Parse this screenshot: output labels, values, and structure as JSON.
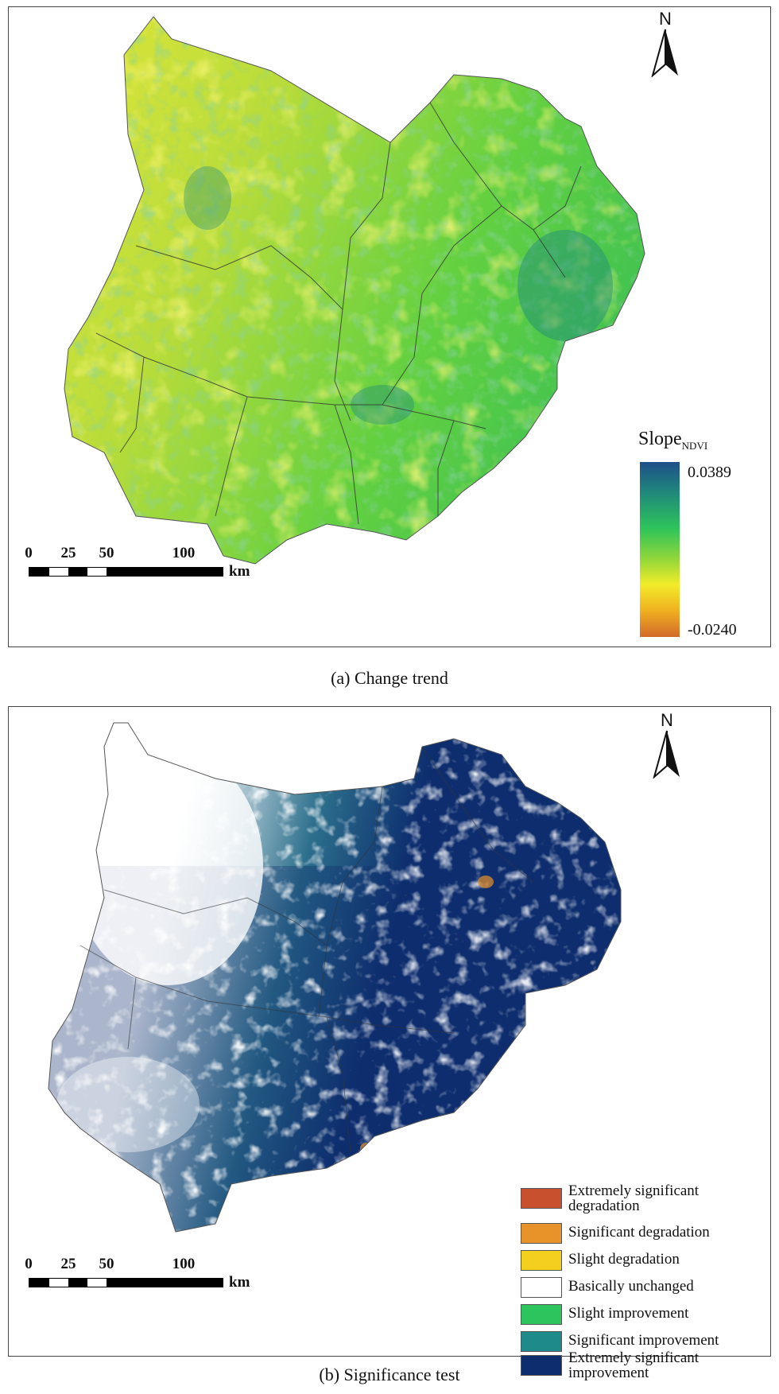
{
  "panels": {
    "a": {
      "caption": "(a) Change trend",
      "north_label": "N",
      "legend": {
        "title_main": "Slope",
        "title_sub": "NDVI",
        "max_label": "0.0389",
        "min_label": "-0.0240",
        "ramp_colors": [
          "#1f4f8a",
          "#1f8a7a",
          "#2ec45a",
          "#8fd63a",
          "#f2ec2a",
          "#f0b020",
          "#d26a2a"
        ]
      },
      "scale": {
        "ticks": [
          "0",
          "25",
          "50",
          "100"
        ],
        "unit": "km"
      }
    },
    "b": {
      "caption": "(b) Significance test",
      "north_label": "N",
      "legend": {
        "items": [
          {
            "label": "Extremely significant degradation",
            "color": "#c8502e"
          },
          {
            "label": "Significant degradation",
            "color": "#e8922a"
          },
          {
            "label": "Slight degradation",
            "color": "#f5cf1e"
          },
          {
            "label": "Basically unchanged",
            "color": "#ffffff"
          },
          {
            "label": "Slight improvement",
            "color": "#2cc45c"
          },
          {
            "label": "Significant improvement",
            "color": "#1f8a8a"
          },
          {
            "label": "Extremely significant improvement",
            "color": "#0d2d6e"
          }
        ]
      },
      "scale": {
        "ticks": [
          "0",
          "25",
          "50",
          "100"
        ],
        "unit": "km"
      }
    }
  }
}
